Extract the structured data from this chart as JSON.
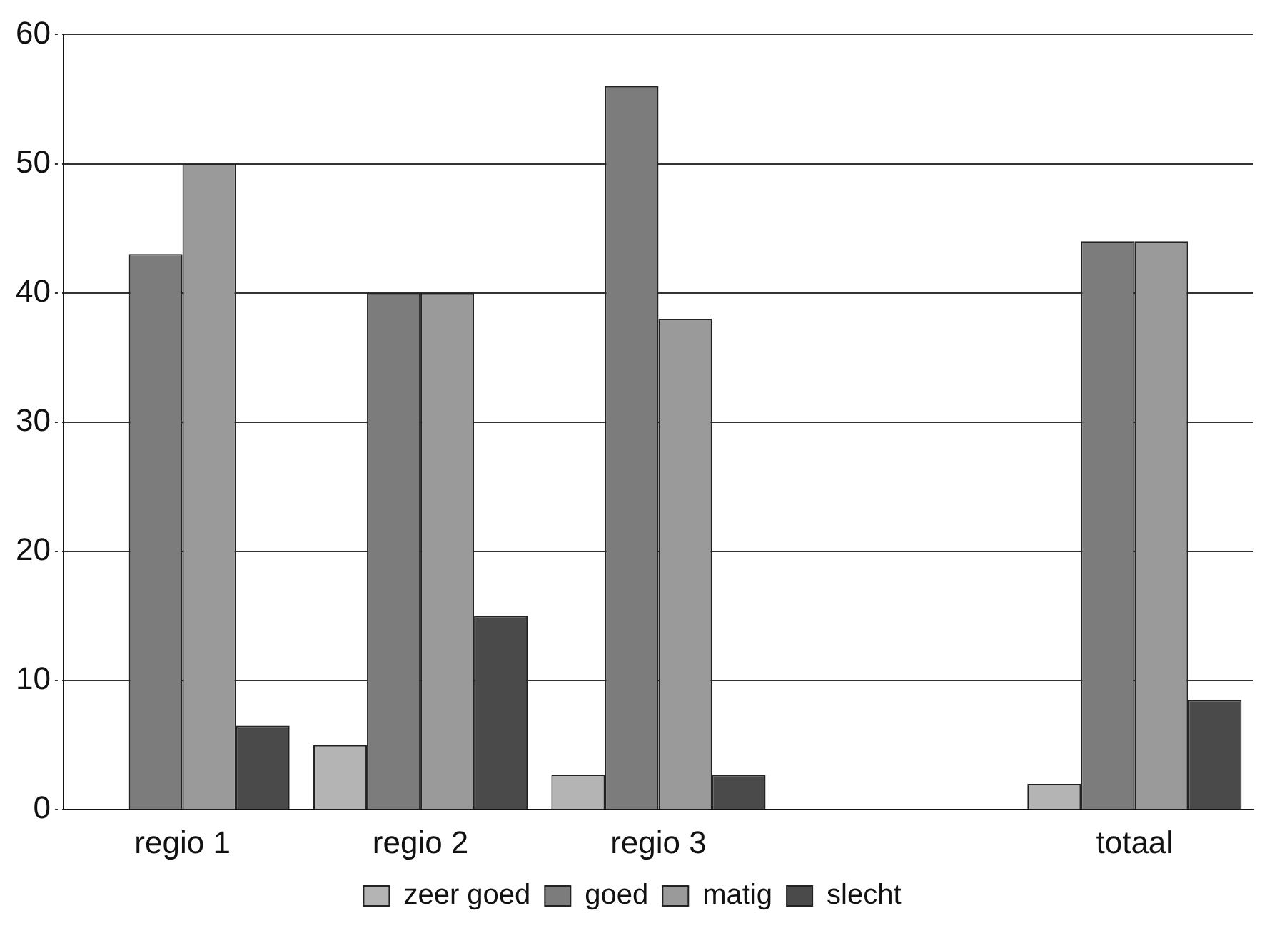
{
  "chart_data": {
    "type": "bar",
    "categories": [
      "regio 1",
      "regio 2",
      "regio 3",
      null,
      "totaal"
    ],
    "series": [
      {
        "name": "zeer goed",
        "color": "#b4b4b4",
        "values": [
          0,
          5,
          2.7,
          null,
          2
        ]
      },
      {
        "name": "goed",
        "color": "#7c7c7c",
        "values": [
          43,
          40,
          56,
          null,
          44
        ]
      },
      {
        "name": "matig",
        "color": "#9a9a9a",
        "values": [
          50,
          40,
          38,
          null,
          44
        ]
      },
      {
        "name": "slecht",
        "color": "#4a4a4a",
        "values": [
          6.5,
          15,
          2.7,
          null,
          8.5
        ]
      }
    ],
    "ylim": [
      0,
      60
    ],
    "yticks": [
      0,
      10,
      20,
      30,
      40,
      50,
      60
    ],
    "grid": "y",
    "legend": "bottom"
  }
}
